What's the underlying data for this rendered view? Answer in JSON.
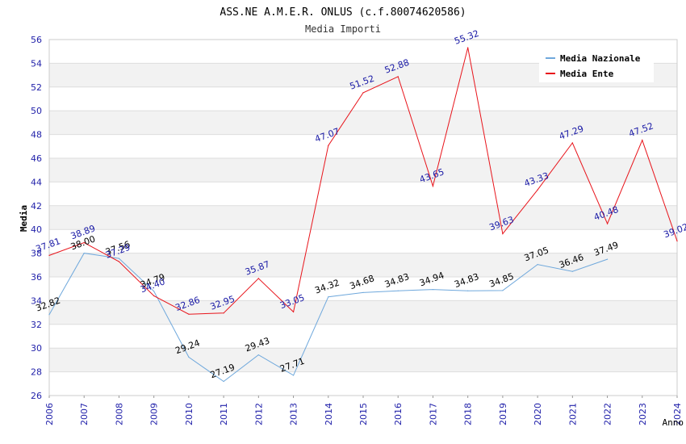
{
  "chart_data": {
    "type": "line",
    "title": "ASS.NE A.M.E.R. ONLUS (c.f.80074620586)",
    "subtitle": "Media Importi",
    "xlabel": "Anno",
    "ylabel": "Media",
    "ylim": [
      26,
      56
    ],
    "yticks": [
      "26",
      "28",
      "30",
      "32",
      "34",
      "36",
      "38",
      "40",
      "42",
      "44",
      "46",
      "48",
      "50",
      "52",
      "54",
      "56"
    ],
    "categories": [
      "2006",
      "2007",
      "2008",
      "2009",
      "2010",
      "2011",
      "2012",
      "2013",
      "2014",
      "2015",
      "2016",
      "2017",
      "2018",
      "2019",
      "2020",
      "2021",
      "2022",
      "2023",
      "2024"
    ],
    "grid": true,
    "legend_position": "top-right",
    "series": [
      {
        "name": "Media Nazionale",
        "color": "#6fa8dc",
        "label_color": "#000000",
        "values": [
          32.82,
          38.0,
          37.56,
          34.79,
          29.24,
          27.19,
          29.43,
          27.71,
          34.32,
          34.68,
          34.83,
          34.94,
          34.83,
          34.85,
          37.05,
          36.46,
          37.49,
          null,
          null
        ],
        "labels": [
          "32.82",
          "38.00",
          "37.56",
          "34.79",
          "29.24",
          "27.19",
          "29.43",
          "27.71",
          "34.32",
          "34.68",
          "34.83",
          "34.94",
          "34.83",
          "34.85",
          "37.05",
          "36.46",
          "37.49",
          null,
          null
        ]
      },
      {
        "name": "Media Ente",
        "color": "#e8141b",
        "label_color": "#1a1aa6",
        "values": [
          37.81,
          38.89,
          37.29,
          34.4,
          32.86,
          32.95,
          35.87,
          33.05,
          47.07,
          51.52,
          52.88,
          43.65,
          55.32,
          39.63,
          43.33,
          47.29,
          40.48,
          47.52,
          39.02
        ],
        "labels": [
          "37.81",
          "38.89",
          "37.29",
          "34.40",
          "32.86",
          "32.95",
          "35.87",
          "33.05",
          "47.07",
          "51.52",
          "52.88",
          "43.65",
          "55.32",
          "39.63",
          "43.33",
          "47.29",
          "40.48",
          "47.52",
          "39.02"
        ]
      }
    ]
  }
}
